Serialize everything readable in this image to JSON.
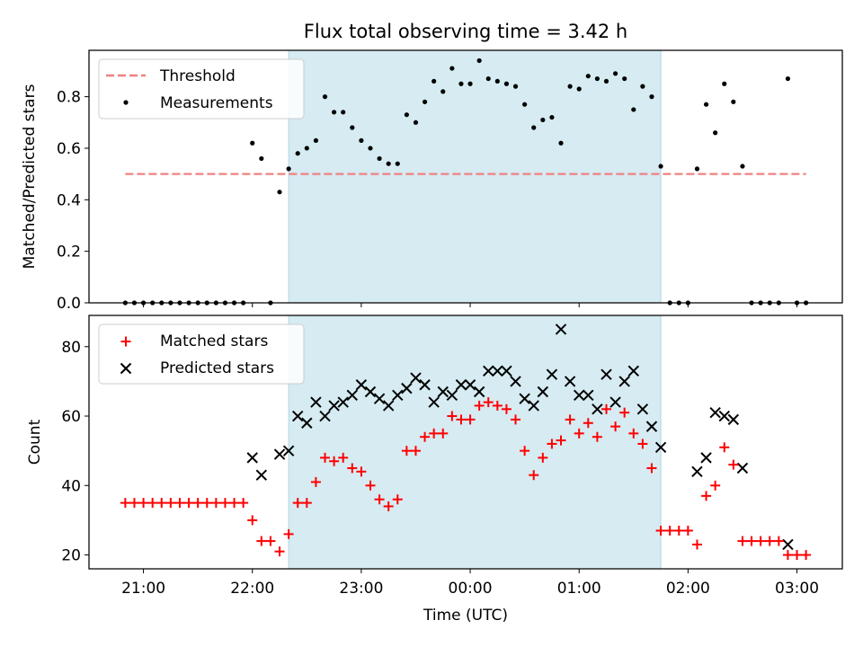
{
  "title": "Flux total observing time = 3.42 h",
  "colors": {
    "threshold": "#f08080",
    "measurements": "#000000",
    "matched": "#ff0000",
    "predicted": "#000000",
    "span": "#add8e6"
  },
  "chart_data": [
    {
      "type": "scatter",
      "ylabel": "Matched/Predicted stars",
      "ylim": [
        0,
        0.98
      ],
      "yticks": [
        "0.0",
        "0.2",
        "0.4",
        "0.6",
        "0.8"
      ],
      "ytick_values": [
        0,
        0.2,
        0.4,
        0.6,
        0.8
      ],
      "legend": {
        "position": "upper-left",
        "entries": [
          {
            "label": "Threshold",
            "marker": "dashed-line"
          },
          {
            "label": "Measurements",
            "marker": "dot"
          }
        ]
      },
      "threshold": {
        "value": 0.5,
        "x_start": "20:50",
        "x_end": "03:05"
      },
      "shaded_interval": {
        "start": "22:20",
        "end": "01:45"
      },
      "series": [
        {
          "name": "Measurements",
          "points": [
            [
              "20:50",
              0
            ],
            [
              "20:55",
              0
            ],
            [
              "21:00",
              0
            ],
            [
              "21:05",
              0
            ],
            [
              "21:10",
              0
            ],
            [
              "21:15",
              0
            ],
            [
              "21:20",
              0
            ],
            [
              "21:25",
              0
            ],
            [
              "21:30",
              0
            ],
            [
              "21:35",
              0
            ],
            [
              "21:40",
              0
            ],
            [
              "21:45",
              0
            ],
            [
              "21:50",
              0
            ],
            [
              "21:55",
              0
            ],
            [
              "22:00",
              0.62
            ],
            [
              "22:05",
              0.56
            ],
            [
              "22:10",
              0
            ],
            [
              "22:15",
              0.43
            ],
            [
              "22:20",
              0.52
            ],
            [
              "22:25",
              0.58
            ],
            [
              "22:30",
              0.6
            ],
            [
              "22:35",
              0.63
            ],
            [
              "22:40",
              0.8
            ],
            [
              "22:45",
              0.74
            ],
            [
              "22:50",
              0.74
            ],
            [
              "22:55",
              0.68
            ],
            [
              "23:00",
              0.63
            ],
            [
              "23:05",
              0.6
            ],
            [
              "23:10",
              0.56
            ],
            [
              "23:15",
              0.54
            ],
            [
              "23:20",
              0.54
            ],
            [
              "23:25",
              0.73
            ],
            [
              "23:30",
              0.7
            ],
            [
              "23:35",
              0.78
            ],
            [
              "23:40",
              0.86
            ],
            [
              "23:45",
              0.82
            ],
            [
              "23:50",
              0.91
            ],
            [
              "23:55",
              0.85
            ],
            [
              "00:00",
              0.85
            ],
            [
              "00:05",
              0.94
            ],
            [
              "00:10",
              0.87
            ],
            [
              "00:15",
              0.86
            ],
            [
              "00:20",
              0.85
            ],
            [
              "00:25",
              0.84
            ],
            [
              "00:30",
              0.77
            ],
            [
              "00:35",
              0.68
            ],
            [
              "00:40",
              0.71
            ],
            [
              "00:45",
              0.72
            ],
            [
              "00:50",
              0.62
            ],
            [
              "00:55",
              0.84
            ],
            [
              "01:00",
              0.83
            ],
            [
              "01:05",
              0.88
            ],
            [
              "01:10",
              0.87
            ],
            [
              "01:15",
              0.86
            ],
            [
              "01:20",
              0.89
            ],
            [
              "01:25",
              0.87
            ],
            [
              "01:30",
              0.75
            ],
            [
              "01:35",
              0.84
            ],
            [
              "01:40",
              0.8
            ],
            [
              "01:45",
              0.53
            ],
            [
              "01:50",
              0
            ],
            [
              "01:55",
              0
            ],
            [
              "02:00",
              0
            ],
            [
              "02:05",
              0.52
            ],
            [
              "02:10",
              0.77
            ],
            [
              "02:15",
              0.66
            ],
            [
              "02:20",
              0.85
            ],
            [
              "02:25",
              0.78
            ],
            [
              "02:30",
              0.53
            ],
            [
              "02:35",
              0
            ],
            [
              "02:40",
              0
            ],
            [
              "02:45",
              0
            ],
            [
              "02:50",
              0
            ],
            [
              "02:55",
              0.87
            ],
            [
              "03:00",
              0
            ],
            [
              "03:05",
              0
            ]
          ]
        }
      ]
    },
    {
      "type": "scatter",
      "xlabel": "Time (UTC)",
      "ylabel": "Count",
      "ylim": [
        16,
        89
      ],
      "yticks": [
        "20",
        "40",
        "60",
        "80"
      ],
      "ytick_values": [
        20,
        40,
        60,
        80
      ],
      "xticks": [
        "21:00",
        "22:00",
        "23:00",
        "00:00",
        "01:00",
        "02:00",
        "03:00"
      ],
      "legend": {
        "position": "upper-left",
        "entries": [
          {
            "label": "Matched stars",
            "marker": "plus"
          },
          {
            "label": "Predicted stars",
            "marker": "x"
          }
        ]
      },
      "shaded_interval": {
        "start": "22:20",
        "end": "01:45"
      },
      "series": [
        {
          "name": "Matched stars",
          "points": [
            [
              "20:50",
              35
            ],
            [
              "20:55",
              35
            ],
            [
              "21:00",
              35
            ],
            [
              "21:05",
              35
            ],
            [
              "21:10",
              35
            ],
            [
              "21:15",
              35
            ],
            [
              "21:20",
              35
            ],
            [
              "21:25",
              35
            ],
            [
              "21:30",
              35
            ],
            [
              "21:35",
              35
            ],
            [
              "21:40",
              35
            ],
            [
              "21:45",
              35
            ],
            [
              "21:50",
              35
            ],
            [
              "21:55",
              35
            ],
            [
              "22:00",
              30
            ],
            [
              "22:05",
              24
            ],
            [
              "22:10",
              24
            ],
            [
              "22:15",
              21
            ],
            [
              "22:20",
              26
            ],
            [
              "22:25",
              35
            ],
            [
              "22:30",
              35
            ],
            [
              "22:35",
              41
            ],
            [
              "22:40",
              48
            ],
            [
              "22:45",
              47
            ],
            [
              "22:50",
              48
            ],
            [
              "22:55",
              45
            ],
            [
              "23:00",
              44
            ],
            [
              "23:05",
              40
            ],
            [
              "23:10",
              36
            ],
            [
              "23:15",
              34
            ],
            [
              "23:20",
              36
            ],
            [
              "23:25",
              50
            ],
            [
              "23:30",
              50
            ],
            [
              "23:35",
              54
            ],
            [
              "23:40",
              55
            ],
            [
              "23:45",
              55
            ],
            [
              "23:50",
              60
            ],
            [
              "23:55",
              59
            ],
            [
              "00:00",
              59
            ],
            [
              "00:05",
              63
            ],
            [
              "00:10",
              64
            ],
            [
              "00:15",
              63
            ],
            [
              "00:20",
              62
            ],
            [
              "00:25",
              59
            ],
            [
              "00:30",
              50
            ],
            [
              "00:35",
              43
            ],
            [
              "00:40",
              48
            ],
            [
              "00:45",
              52
            ],
            [
              "00:50",
              53
            ],
            [
              "00:55",
              59
            ],
            [
              "01:00",
              55
            ],
            [
              "01:05",
              58
            ],
            [
              "01:10",
              54
            ],
            [
              "01:15",
              62
            ],
            [
              "01:20",
              57
            ],
            [
              "01:25",
              61
            ],
            [
              "01:30",
              55
            ],
            [
              "01:35",
              52
            ],
            [
              "01:40",
              45
            ],
            [
              "01:45",
              27
            ],
            [
              "01:50",
              27
            ],
            [
              "01:55",
              27
            ],
            [
              "02:00",
              27
            ],
            [
              "02:05",
              23
            ],
            [
              "02:10",
              37
            ],
            [
              "02:15",
              40
            ],
            [
              "02:20",
              51
            ],
            [
              "02:25",
              46
            ],
            [
              "02:30",
              24
            ],
            [
              "02:35",
              24
            ],
            [
              "02:40",
              24
            ],
            [
              "02:45",
              24
            ],
            [
              "02:50",
              24
            ],
            [
              "02:55",
              20
            ],
            [
              "03:00",
              20
            ],
            [
              "03:05",
              20
            ]
          ]
        },
        {
          "name": "Predicted stars",
          "points": [
            [
              "22:00",
              48
            ],
            [
              "22:05",
              43
            ],
            [
              "22:15",
              49
            ],
            [
              "22:20",
              50
            ],
            [
              "22:25",
              60
            ],
            [
              "22:30",
              58
            ],
            [
              "22:35",
              64
            ],
            [
              "22:40",
              60
            ],
            [
              "22:45",
              63
            ],
            [
              "22:50",
              64
            ],
            [
              "22:55",
              66
            ],
            [
              "23:00",
              69
            ],
            [
              "23:05",
              67
            ],
            [
              "23:10",
              65
            ],
            [
              "23:15",
              63
            ],
            [
              "23:20",
              66
            ],
            [
              "23:25",
              68
            ],
            [
              "23:30",
              71
            ],
            [
              "23:35",
              69
            ],
            [
              "23:40",
              64
            ],
            [
              "23:45",
              67
            ],
            [
              "23:50",
              66
            ],
            [
              "23:55",
              69
            ],
            [
              "00:00",
              69
            ],
            [
              "00:05",
              67
            ],
            [
              "00:10",
              73
            ],
            [
              "00:15",
              73
            ],
            [
              "00:20",
              73
            ],
            [
              "00:25",
              70
            ],
            [
              "00:30",
              65
            ],
            [
              "00:35",
              63
            ],
            [
              "00:40",
              67
            ],
            [
              "00:45",
              72
            ],
            [
              "00:50",
              85
            ],
            [
              "00:55",
              70
            ],
            [
              "01:00",
              66
            ],
            [
              "01:05",
              66
            ],
            [
              "01:10",
              62
            ],
            [
              "01:15",
              72
            ],
            [
              "01:20",
              64
            ],
            [
              "01:25",
              70
            ],
            [
              "01:30",
              73
            ],
            [
              "01:35",
              62
            ],
            [
              "01:40",
              57
            ],
            [
              "01:45",
              51
            ],
            [
              "02:05",
              44
            ],
            [
              "02:10",
              48
            ],
            [
              "02:15",
              61
            ],
            [
              "02:20",
              60
            ],
            [
              "02:25",
              59
            ],
            [
              "02:30",
              45
            ],
            [
              "02:55",
              23
            ]
          ]
        }
      ]
    }
  ]
}
